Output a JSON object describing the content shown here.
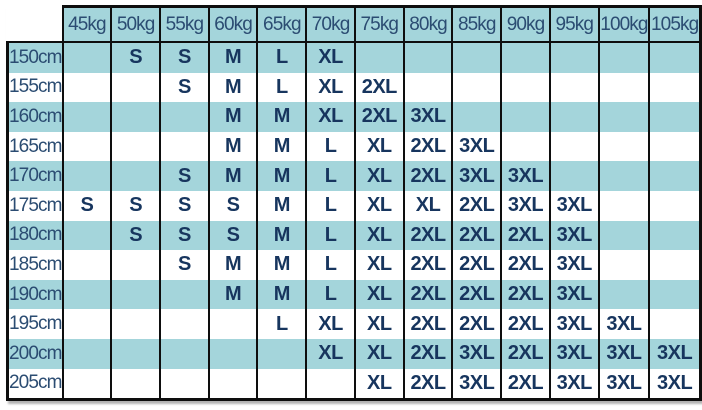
{
  "colors": {
    "stripe_teal": "#a4d5db",
    "stripe_white": "#ffffff",
    "label_text_navy": "#2b4c72",
    "size_text_navy": "#17355e",
    "grid_black": "#0e0e0e",
    "page_background": "#ffffff"
  },
  "chart_data": {
    "type": "table",
    "title": "",
    "column_headers": [
      "45kg",
      "50kg",
      "55kg",
      "60kg",
      "65kg",
      "70kg",
      "75kg",
      "80kg",
      "85kg",
      "90kg",
      "95kg",
      "100kg",
      "105kg"
    ],
    "row_headers": [
      "150cm",
      "155cm",
      "160cm",
      "165cm",
      "170cm",
      "175cm",
      "180cm",
      "185cm",
      "190cm",
      "195cm",
      "200cm",
      "205cm"
    ],
    "cells": [
      [
        "",
        "S",
        "S",
        "M",
        "L",
        "XL",
        "",
        "",
        "",
        "",
        "",
        "",
        ""
      ],
      [
        "",
        "",
        "S",
        "M",
        "L",
        "XL",
        "2XL",
        "",
        "",
        "",
        "",
        "",
        ""
      ],
      [
        "",
        "",
        "",
        "M",
        "M",
        "XL",
        "2XL",
        "3XL",
        "",
        "",
        "",
        "",
        ""
      ],
      [
        "",
        "",
        "",
        "M",
        "M",
        "L",
        "XL",
        "2XL",
        "3XL",
        "",
        "",
        "",
        ""
      ],
      [
        "",
        "",
        "S",
        "M",
        "M",
        "L",
        "XL",
        "2XL",
        "3XL",
        "3XL",
        "",
        "",
        ""
      ],
      [
        "S",
        "S",
        "S",
        "S",
        "M",
        "L",
        "XL",
        "XL",
        "2XL",
        "3XL",
        "3XL",
        "",
        ""
      ],
      [
        "",
        "S",
        "S",
        "S",
        "M",
        "L",
        "XL",
        "2XL",
        "2XL",
        "2XL",
        "3XL",
        "",
        ""
      ],
      [
        "",
        "",
        "S",
        "M",
        "M",
        "L",
        "XL",
        "2XL",
        "2XL",
        "2XL",
        "3XL",
        "",
        ""
      ],
      [
        "",
        "",
        "",
        "M",
        "M",
        "L",
        "XL",
        "2XL",
        "2XL",
        "2XL",
        "3XL",
        "",
        ""
      ],
      [
        "",
        "",
        "",
        "",
        "L",
        "XL",
        "XL",
        "2XL",
        "2XL",
        "2XL",
        "3XL",
        "3XL",
        ""
      ],
      [
        "",
        "",
        "",
        "",
        "",
        "XL",
        "XL",
        "2XL",
        "3XL",
        "2XL",
        "3XL",
        "3XL",
        "3XL"
      ],
      [
        "",
        "",
        "",
        "",
        "",
        "",
        "XL",
        "2XL",
        "3XL",
        "2XL",
        "3XL",
        "3XL",
        "3XL"
      ]
    ],
    "layout": {
      "grid": "vertical-lines-only-in-body",
      "row_striping": "teal-on-odd-rows",
      "corner_cell": "empty-unbordered"
    }
  }
}
